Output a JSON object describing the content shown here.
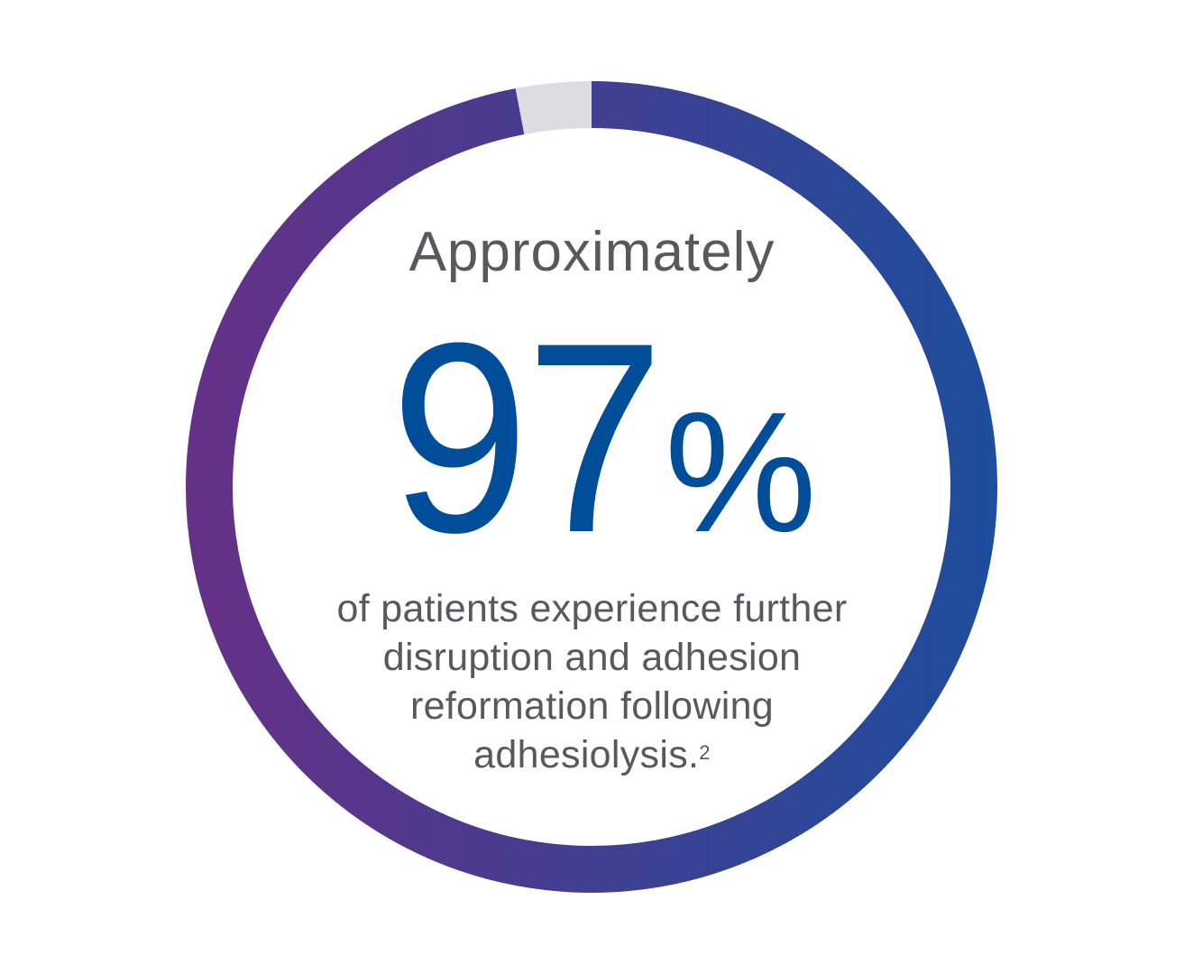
{
  "chart_data": {
    "type": "pie",
    "variant": "donut",
    "values": [
      97,
      3
    ],
    "colors": {
      "filled_start": "#663087",
      "filled_end": "#1d4d9c",
      "remainder": "#dcdde1"
    }
  },
  "intro": "Approximately",
  "stat": {
    "number": "97",
    "unit": "%"
  },
  "description": {
    "lines": [
      "of patients experience further",
      "disruption and adhesion",
      "reformation following",
      "adhesiolysis."
    ],
    "footnote": "2"
  }
}
